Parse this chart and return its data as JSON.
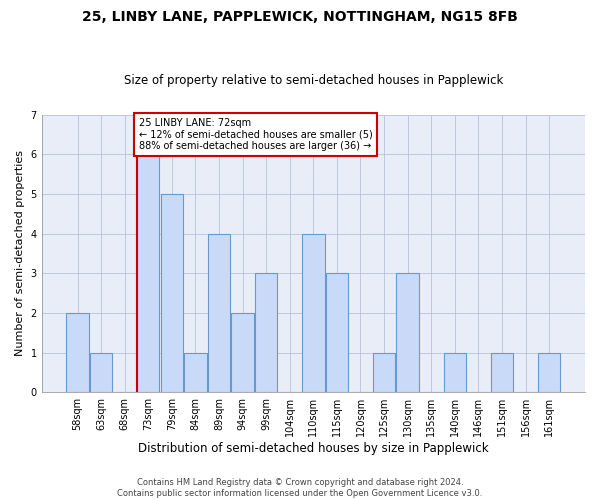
{
  "title": "25, LINBY LANE, PAPPLEWICK, NOTTINGHAM, NG15 8FB",
  "subtitle": "Size of property relative to semi-detached houses in Papplewick",
  "xlabel": "Distribution of semi-detached houses by size in Papplewick",
  "ylabel": "Number of semi-detached properties",
  "categories": [
    "58sqm",
    "63sqm",
    "68sqm",
    "73sqm",
    "79sqm",
    "84sqm",
    "89sqm",
    "94sqm",
    "99sqm",
    "104sqm",
    "110sqm",
    "115sqm",
    "120sqm",
    "125sqm",
    "130sqm",
    "135sqm",
    "140sqm",
    "146sqm",
    "151sqm",
    "156sqm",
    "161sqm"
  ],
  "values": [
    2,
    1,
    0,
    6,
    5,
    1,
    4,
    2,
    3,
    0,
    4,
    3,
    0,
    1,
    3,
    0,
    1,
    0,
    1,
    0,
    1
  ],
  "bar_color": "#c9daf8",
  "bar_edge_color": "#6699cc",
  "highlight_index": 3,
  "highlight_line_color": "#cc0000",
  "annotation_line1": "25 LINBY LANE: 72sqm",
  "annotation_line2": "← 12% of semi-detached houses are smaller (5)",
  "annotation_line3": "88% of semi-detached houses are larger (36) →",
  "annotation_box_color": "#ffffff",
  "annotation_box_edge": "#cc0000",
  "footer_text": "Contains HM Land Registry data © Crown copyright and database right 2024.\nContains public sector information licensed under the Open Government Licence v3.0.",
  "ylim": [
    0,
    7
  ],
  "yticks": [
    0,
    1,
    2,
    3,
    4,
    5,
    6,
    7
  ],
  "grid_color": "#b0b8d8",
  "bg_color": "#e8edf8",
  "title_fontsize": 10,
  "subtitle_fontsize": 8.5,
  "tick_fontsize": 7,
  "ylabel_fontsize": 8,
  "xlabel_fontsize": 8.5,
  "annotation_fontsize": 7,
  "footer_fontsize": 6
}
